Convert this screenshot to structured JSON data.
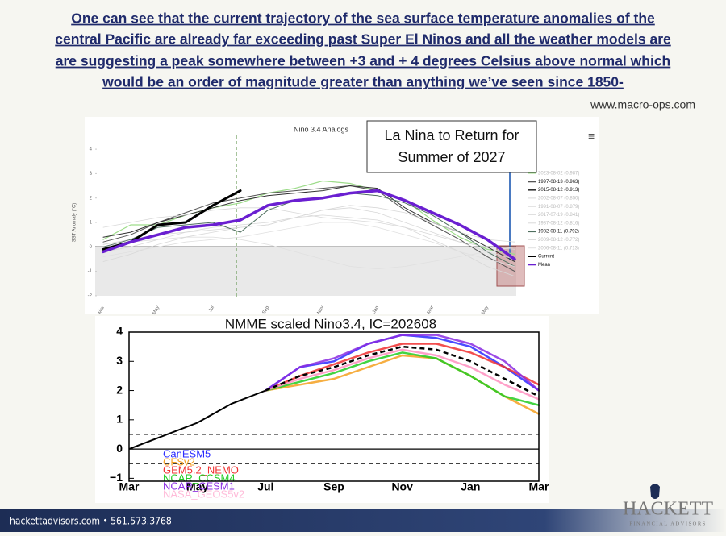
{
  "header": {
    "lines": [
      "One can see that the current trajectory of the sea surface temperature anomalies of the",
      "central Pacific are already far exceeding past Super El Ninos and all the weather models are",
      "are suggesting a peak somewhere between +3 and + 4 degrees Celsius above normal which",
      "would be an order of magnitude greater than anything we’ve seen since 1850-"
    ],
    "source": "www.macro-ops.com"
  },
  "chart_data": [
    {
      "type": "line",
      "title": "Nino 3.4 Analogs",
      "y_label": "SST Anomaly (°C)",
      "annotation": [
        "La Nina to Return for",
        "Summer of 2027"
      ],
      "categories": [
        "Mar",
        null,
        "May",
        null,
        "Jul",
        null,
        "Sep",
        null,
        "Nov",
        null,
        "Jan",
        null,
        "Mar",
        null,
        "May",
        null
      ],
      "ylim": [
        -2.3,
        4.3
      ],
      "yticks": [
        -2,
        -1,
        0,
        1,
        2,
        3,
        4
      ],
      "series": [
        {
          "name": "2023-08-02 (0.987)",
          "color": "#9ddc8a",
          "faint": true,
          "width": 1.2,
          "values": [
            0.3,
            0.9,
            0.9,
            1.3,
            1.6,
            1.8,
            2.2,
            2.4,
            2.7,
            2.6,
            2.3,
            1.9,
            1.1,
            0.4,
            -0.1,
            -0.3
          ]
        },
        {
          "name": "1997-08-13 (0.963)",
          "color": "#555555",
          "faint": false,
          "width": 1,
          "values": [
            0.2,
            0.5,
            1.0,
            1.4,
            1.8,
            2.0,
            2.2,
            2.3,
            2.4,
            2.5,
            2.3,
            1.5,
            0.9,
            0.3,
            -0.4,
            -1.0
          ]
        },
        {
          "name": "2015-08-12 (0.913)",
          "color": "#333333",
          "faint": false,
          "width": 1,
          "values": [
            0.4,
            0.6,
            1.0,
            1.3,
            1.6,
            1.9,
            2.1,
            2.2,
            2.3,
            2.5,
            2.4,
            1.6,
            1.0,
            0.6,
            0.0,
            -0.6
          ]
        },
        {
          "name": "2002-08-07 (0.850)",
          "color": "#d8d8d8",
          "faint": true,
          "width": 0.8,
          "values": [
            -0.2,
            0.0,
            0.3,
            0.6,
            0.8,
            0.9,
            1.0,
            1.2,
            1.3,
            1.2,
            1.1,
            0.8,
            0.5,
            0.2,
            0.0,
            -0.1
          ]
        },
        {
          "name": "1991-08-07 (0.879)",
          "color": "#d8d8d8",
          "faint": true,
          "width": 0.8,
          "values": [
            0.1,
            0.3,
            0.5,
            0.6,
            0.7,
            0.8,
            0.9,
            1.2,
            1.5,
            1.7,
            1.6,
            1.4,
            1.0,
            0.6,
            0.3,
            0.2
          ]
        },
        {
          "name": "2017-07-19 (0.841)",
          "color": "#e0e0e0",
          "faint": true,
          "width": 0.8,
          "values": [
            0.0,
            0.2,
            0.3,
            0.4,
            0.4,
            0.3,
            0.1,
            -0.2,
            -0.5,
            -0.8,
            -0.9,
            -0.8,
            -0.6,
            -0.4,
            -0.2,
            0.0
          ]
        },
        {
          "name": "1987-08-12 (0.816)",
          "color": "#d8d8d8",
          "faint": true,
          "width": 0.8,
          "values": [
            0.8,
            1.0,
            1.2,
            1.3,
            1.5,
            1.6,
            1.6,
            1.4,
            1.2,
            1.1,
            1.0,
            0.8,
            0.3,
            -0.2,
            -0.8,
            -1.2
          ]
        },
        {
          "name": "1982-08-11 (0.792)",
          "color": "#4f6f5f",
          "faint": false,
          "width": 1,
          "values": [
            0.0,
            0.3,
            0.8,
            0.9,
            1.0,
            0.6,
            1.5,
            1.9,
            2.0,
            2.2,
            2.1,
            1.8,
            1.3,
            0.6,
            -0.2,
            -0.8
          ]
        },
        {
          "name": "2009-08-12 (0.772)",
          "color": "#d8d8d8",
          "faint": true,
          "width": 0.8,
          "values": [
            -0.6,
            -0.3,
            0.1,
            0.4,
            0.6,
            0.8,
            0.9,
            1.2,
            1.5,
            1.6,
            1.4,
            1.0,
            0.6,
            0.2,
            -0.2,
            -0.5
          ]
        },
        {
          "name": "2006-08-11 (0.713)",
          "color": "#e0e0e0",
          "faint": true,
          "width": 0.8,
          "values": [
            -0.4,
            -0.2,
            0.0,
            0.2,
            0.3,
            0.4,
            0.6,
            0.8,
            1.0,
            1.0,
            0.8,
            0.5,
            0.2,
            -0.2,
            -0.5,
            -0.8
          ]
        },
        {
          "name": "Current",
          "color": "#000000",
          "faint": false,
          "width": 3,
          "values": [
            -0.1,
            0.2,
            0.9,
            1.0,
            1.7,
            2.3,
            null,
            null,
            null,
            null,
            null,
            null,
            null,
            null,
            null,
            null
          ]
        },
        {
          "name": "Mean",
          "color": "#6a1fd1",
          "faint": false,
          "width": 3.5,
          "values": [
            -0.2,
            0.2,
            0.5,
            0.8,
            0.9,
            1.1,
            1.7,
            1.9,
            2.0,
            2.2,
            2.3,
            1.9,
            1.4,
            0.9,
            0.3,
            -0.5
          ]
        }
      ]
    },
    {
      "type": "line",
      "title": "NMME scaled Nino3.4, IC=202608",
      "categories": [
        "Mar",
        null,
        "May",
        null,
        "Jul",
        null,
        "Sep",
        null,
        "Nov",
        null,
        "Jan",
        null,
        "Mar"
      ],
      "ylim": [
        -1.1,
        4
      ],
      "yticks": [
        {
          "value": -1,
          "label": "−1"
        },
        0,
        1,
        2,
        3,
        4
      ],
      "reference_lines": [
        0.5,
        -0.5
      ],
      "series": [
        {
          "name": "CanESM5",
          "color": "#2b2bff",
          "values": [
            null,
            null,
            null,
            null,
            2.0,
            2.8,
            3.0,
            3.6,
            3.9,
            3.8,
            3.5,
            2.8,
            2.0
          ]
        },
        {
          "name": "CFSv2",
          "color": "#f5a020",
          "values": [
            null,
            null,
            null,
            null,
            2.0,
            2.2,
            2.4,
            2.8,
            3.2,
            3.1,
            2.5,
            1.8,
            1.2
          ]
        },
        {
          "name": "GEM5.2_NEMO",
          "color": "#f03030",
          "values": [
            null,
            null,
            null,
            null,
            2.0,
            2.5,
            2.9,
            3.3,
            3.6,
            3.6,
            3.3,
            2.8,
            2.2
          ]
        },
        {
          "name": "NCAR_CCSM4",
          "color": "#22cc22",
          "values": [
            null,
            null,
            null,
            null,
            2.0,
            2.3,
            2.6,
            3.0,
            3.3,
            3.1,
            2.5,
            1.8,
            1.5
          ]
        },
        {
          "name": "NCAR_CESM1",
          "color": "#8a2be2",
          "values": [
            null,
            null,
            null,
            null,
            2.0,
            2.8,
            3.1,
            3.6,
            3.9,
            3.9,
            3.6,
            3.0,
            2.0
          ]
        },
        {
          "name": "NASA_GEOS5v2",
          "color": "#ff8fc0",
          "values": [
            null,
            null,
            null,
            null,
            2.0,
            2.4,
            2.7,
            3.1,
            3.4,
            3.2,
            2.8,
            2.2,
            1.7
          ]
        }
      ],
      "mean_line": {
        "color": "#000000",
        "values": [
          null,
          null,
          null,
          null,
          2.0,
          2.5,
          2.8,
          3.2,
          3.5,
          3.4,
          3.0,
          2.4,
          1.8
        ]
      },
      "observed": {
        "color": "#000000",
        "values": [
          0.0,
          0.45,
          0.9,
          1.55,
          2.0,
          null,
          null,
          null,
          null,
          null,
          null,
          null,
          null
        ]
      }
    }
  ],
  "footer": {
    "contact": "hackettadvisors.com • 561.573.3768",
    "logo": "HACKETT",
    "logo_sub": "FINANCIAL ADVISORS"
  }
}
